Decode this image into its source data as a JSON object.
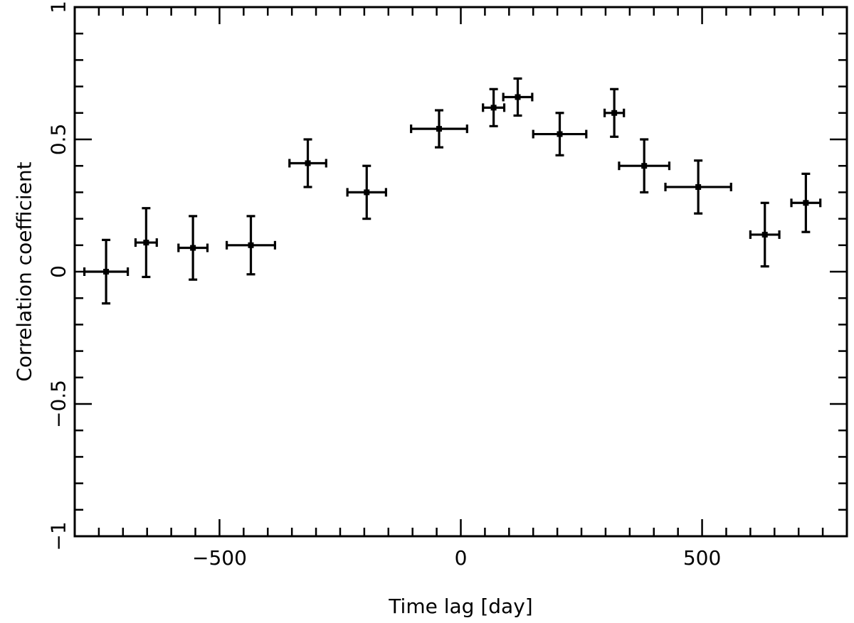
{
  "chart_data": {
    "type": "scatter",
    "title": "",
    "xlabel": "Time lag [day]",
    "ylabel": "Correlation coefficient",
    "xlim": [
      -800,
      800
    ],
    "ylim": [
      -1,
      1
    ],
    "xticks": [
      -500,
      0,
      500
    ],
    "xtick_labels": [
      "−500",
      "0",
      "500"
    ],
    "x_minor_step": 50,
    "yticks": [
      -1,
      -0.5,
      0,
      0.5,
      1
    ],
    "ytick_labels": [
      "−1",
      "−0.5",
      "0",
      "0.5",
      "1"
    ],
    "y_minor_step": 0.1,
    "grid": false,
    "legend": "none",
    "colors": {
      "marks": "#000000",
      "frame": "#000000",
      "background": "#ffffff"
    },
    "series": [
      {
        "points": [
          {
            "x": -735,
            "y": 0.0,
            "xerr": 45,
            "yerr": 0.12
          },
          {
            "x": -652,
            "y": 0.11,
            "xerr": 22,
            "yerr": 0.13
          },
          {
            "x": -555,
            "y": 0.09,
            "xerr": 30,
            "yerr": 0.12
          },
          {
            "x": -435,
            "y": 0.1,
            "xerr": 50,
            "yerr": 0.11
          },
          {
            "x": -317,
            "y": 0.41,
            "xerr": 38,
            "yerr": 0.09
          },
          {
            "x": -195,
            "y": 0.3,
            "xerr": 40,
            "yerr": 0.1
          },
          {
            "x": -45,
            "y": 0.54,
            "xerr": 58,
            "yerr": 0.07
          },
          {
            "x": 68,
            "y": 0.62,
            "xerr": 22,
            "yerr": 0.07
          },
          {
            "x": 118,
            "y": 0.66,
            "xerr": 30,
            "yerr": 0.07
          },
          {
            "x": 205,
            "y": 0.52,
            "xerr": 55,
            "yerr": 0.08
          },
          {
            "x": 318,
            "y": 0.6,
            "xerr": 20,
            "yerr": 0.09
          },
          {
            "x": 380,
            "y": 0.4,
            "xerr": 52,
            "yerr": 0.1
          },
          {
            "x": 492,
            "y": 0.32,
            "xerr": 68,
            "yerr": 0.1
          },
          {
            "x": 630,
            "y": 0.14,
            "xerr": 30,
            "yerr": 0.12
          },
          {
            "x": 715,
            "y": 0.26,
            "xerr": 30,
            "yerr": 0.11
          }
        ]
      }
    ]
  }
}
